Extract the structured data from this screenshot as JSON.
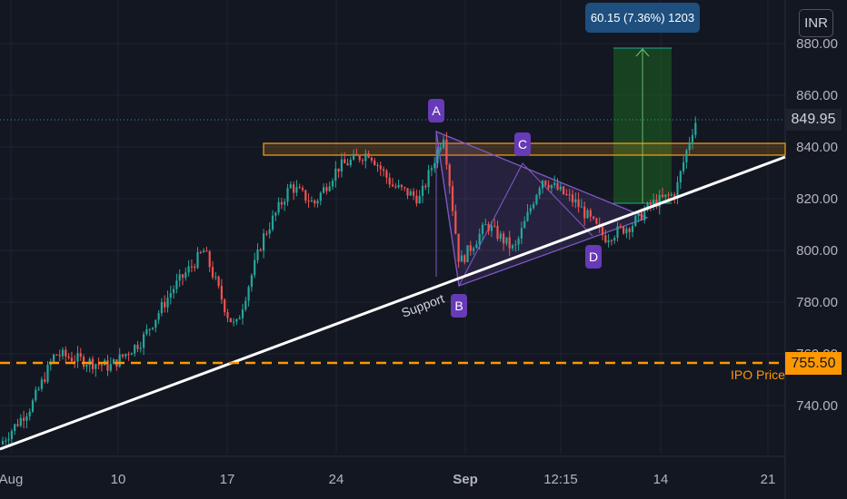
{
  "header": {
    "measure_label": "60.15 (7.36%) 1203",
    "currency": "INR"
  },
  "price_tags": {
    "last_price": "849.95",
    "ipo_price": "755.50",
    "ipo_label": "IPO Price"
  },
  "pattern_labels": {
    "a": "A",
    "b": "B",
    "c": "C",
    "d": "D",
    "support": "Support"
  },
  "colors": {
    "background": "#131722",
    "up": "#26a69a",
    "down": "#ef5350",
    "pattern": "#7e57c2",
    "resistance": "#f7a21b",
    "ipo": "#ff9800",
    "target": "#1b5e20",
    "support": "#ffffff"
  },
  "chart_data": {
    "type": "candlestick",
    "title": "",
    "x_ticks": [
      "Aug",
      "10",
      "17",
      "24",
      "Sep",
      "12:15",
      "14",
      "21"
    ],
    "y_ticks": [
      740,
      760,
      780,
      800,
      820,
      840,
      860,
      880
    ],
    "ylim": [
      724,
      891
    ],
    "grid": true,
    "last_price": 849.95,
    "ipo_price": 755.5,
    "resistance_zone": [
      836,
      841
    ],
    "measure": {
      "change": 60.15,
      "change_pct": 7.36,
      "bars": 1203,
      "from": 818,
      "to": 878
    },
    "price_path": [
      [
        0,
        725
      ],
      [
        0.04,
        740
      ],
      [
        0.07,
        760
      ],
      [
        0.14,
        755
      ],
      [
        0.18,
        765
      ],
      [
        0.22,
        785
      ],
      [
        0.26,
        800
      ],
      [
        0.29,
        775
      ],
      [
        0.3,
        770
      ],
      [
        0.335,
        805
      ],
      [
        0.37,
        825
      ],
      [
        0.4,
        818
      ],
      [
        0.43,
        832
      ],
      [
        0.47,
        838
      ],
      [
        0.5,
        825
      ],
      [
        0.535,
        820
      ],
      [
        0.565,
        845
      ],
      [
        0.585,
        795
      ],
      [
        0.62,
        810
      ],
      [
        0.655,
        800
      ],
      [
        0.69,
        828
      ],
      [
        0.735,
        818
      ],
      [
        0.77,
        805
      ],
      [
        0.805,
        810
      ],
      [
        0.83,
        818
      ],
      [
        0.86,
        822
      ],
      [
        0.88,
        845
      ],
      [
        0.886,
        850
      ]
    ],
    "annotations": [
      "A",
      "B",
      "C",
      "D",
      "Support",
      "IPO Price"
    ]
  }
}
